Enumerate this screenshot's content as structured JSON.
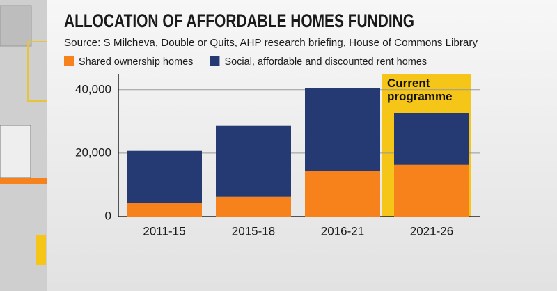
{
  "chart_data": {
    "type": "stacked_bar",
    "title": "ALLOCATION OF AFFORDABLE HOMES FUNDING",
    "subtitle": "Source: S Milcheva, Double or Quits, AHP research briefing, House of Commons Library",
    "categories": [
      "2011-15",
      "2015-18",
      "2016-21",
      "2021-26"
    ],
    "series": [
      {
        "name": "Shared ownership homes",
        "color": "#f7821b",
        "values": [
          4200,
          6200,
          14300,
          16300
        ]
      },
      {
        "name": "Social, affordable and discounted rent homes",
        "color": "#253a72",
        "values": [
          16500,
          22400,
          26100,
          16200
        ]
      }
    ],
    "ylim": [
      0,
      45000
    ],
    "yticks": [
      0,
      {
        "value": 20000,
        "label": "20,000"
      },
      {
        "value": 40000,
        "label": "40,000"
      }
    ],
    "grid": true,
    "annotation": {
      "text": "Current programme",
      "category": 3,
      "color": "#f5c518"
    }
  }
}
